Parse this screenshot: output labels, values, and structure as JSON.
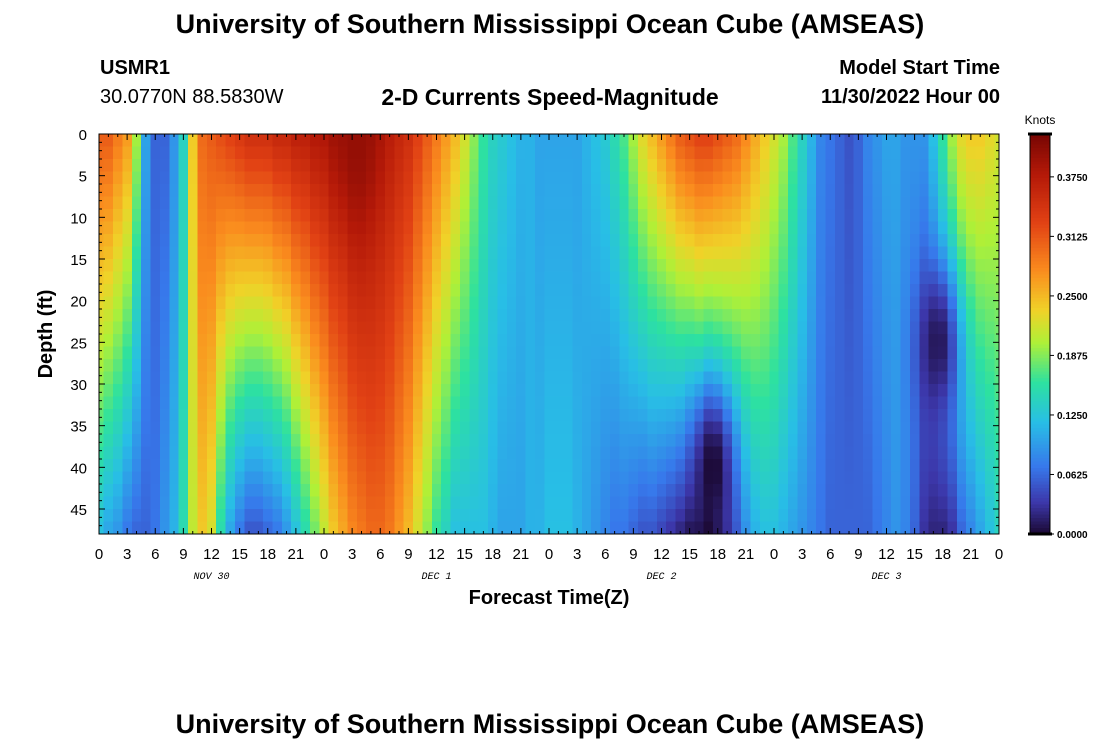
{
  "header": {
    "title": "University of Southern Mississippi Ocean Cube (AMSEAS)",
    "station_id": "USMR1",
    "station_coords": "30.0770N  88.5830W",
    "chart_title": "2-D Currents Speed-Magnitude",
    "model_start_label": "Model Start Time",
    "model_start_value": "11/30/2022 Hour 00"
  },
  "footer": {
    "title": "University of Southern Mississippi Ocean Cube (AMSEAS)"
  },
  "chart_data": {
    "type": "heatmap",
    "title": "2-D Currents Speed-Magnitude",
    "xlabel": "Forecast Time(Z)",
    "ylabel": "Depth (ft)",
    "x_range_hours": [
      0,
      96
    ],
    "x_tick_step_hours": 3,
    "x_tick_labels": [
      "0",
      "3",
      "6",
      "9",
      "12",
      "15",
      "18",
      "21",
      "0",
      "3",
      "6",
      "9",
      "12",
      "15",
      "18",
      "21",
      "0",
      "3",
      "6",
      "9",
      "12",
      "15",
      "18",
      "21",
      "0",
      "3",
      "6",
      "9",
      "12",
      "15",
      "18",
      "21",
      "0"
    ],
    "x_day_labels": [
      {
        "label": "NOV 30",
        "hour": 12
      },
      {
        "label": "DEC 1",
        "hour": 36
      },
      {
        "label": "DEC 2",
        "hour": 60
      },
      {
        "label": "DEC 3",
        "hour": 84
      }
    ],
    "y_range_ft": [
      0,
      48
    ],
    "y_ticks": [
      0,
      5,
      10,
      15,
      20,
      25,
      30,
      35,
      40,
      45
    ],
    "y_tick_labels": [
      "0",
      "5",
      "10",
      "15",
      "20",
      "25",
      "30",
      "35",
      "40",
      "45"
    ],
    "colorbar": {
      "label": "Knots",
      "range": [
        0,
        0.42
      ],
      "ticks": [
        0,
        0.0625,
        0.125,
        0.1875,
        0.25,
        0.3125,
        0.375
      ],
      "tick_labels": [
        "0.0000",
        "0.0625",
        "0.1250",
        "0.1875",
        "0.2500",
        "0.3125",
        "0.3750"
      ]
    },
    "features": [
      {
        "description": "strong surface current maximum",
        "hour": 27.5,
        "depth_ft": 0,
        "speed_knots": 0.4
      },
      {
        "description": "near-zero minimum",
        "hour": 65.5,
        "depth_ft": 40,
        "speed_knots": 0.0
      },
      {
        "description": "near-zero minimum",
        "hour": 89.5,
        "depth_ft": 25,
        "speed_knots": 0.01
      }
    ],
    "speed_profiles_knots": {
      "hours": [
        0,
        1,
        2,
        3,
        4,
        5,
        6,
        7,
        8,
        9,
        10,
        11,
        12,
        13,
        14,
        15,
        16,
        17,
        18,
        19,
        20,
        21,
        22,
        23,
        24,
        25,
        26,
        27,
        28,
        29,
        30,
        31,
        32,
        33,
        34,
        35,
        36,
        37,
        38,
        39,
        40,
        41,
        42,
        43,
        44,
        45,
        46,
        47,
        48,
        49,
        50,
        51,
        52,
        53,
        54,
        55,
        56,
        57,
        58,
        59,
        60,
        61,
        62,
        63,
        64,
        65,
        66,
        67,
        68,
        69,
        70,
        71,
        72,
        73,
        74,
        75,
        76,
        77,
        78,
        79,
        80,
        81,
        82,
        83,
        84,
        85,
        86,
        87,
        88,
        89,
        90,
        91,
        92,
        93,
        94,
        95,
        96
      ],
      "surface_0ft": [
        0.31,
        0.31,
        0.29,
        0.27,
        0.2,
        0.1,
        0.06,
        0.06,
        0.09,
        0.14,
        0.24,
        0.3,
        0.31,
        0.32,
        0.33,
        0.34,
        0.35,
        0.35,
        0.35,
        0.36,
        0.36,
        0.37,
        0.37,
        0.38,
        0.38,
        0.39,
        0.39,
        0.4,
        0.4,
        0.39,
        0.38,
        0.37,
        0.36,
        0.35,
        0.33,
        0.31,
        0.29,
        0.27,
        0.25,
        0.22,
        0.19,
        0.16,
        0.14,
        0.13,
        0.12,
        0.11,
        0.11,
        0.1,
        0.1,
        0.1,
        0.1,
        0.1,
        0.11,
        0.12,
        0.13,
        0.15,
        0.17,
        0.2,
        0.23,
        0.25,
        0.27,
        0.29,
        0.31,
        0.32,
        0.33,
        0.33,
        0.32,
        0.31,
        0.3,
        0.28,
        0.26,
        0.24,
        0.22,
        0.2,
        0.17,
        0.14,
        0.11,
        0.08,
        0.07,
        0.06,
        0.05,
        0.06,
        0.08,
        0.09,
        0.1,
        0.1,
        0.09,
        0.09,
        0.09,
        0.12,
        0.16,
        0.2,
        0.23,
        0.24,
        0.24,
        0.23,
        0.22
      ],
      "bottom_45ft": [
        0.12,
        0.1,
        0.09,
        0.07,
        0.06,
        0.06,
        0.07,
        0.09,
        0.11,
        0.15,
        0.21,
        0.24,
        0.22,
        0.15,
        0.1,
        0.07,
        0.05,
        0.05,
        0.06,
        0.07,
        0.09,
        0.12,
        0.15,
        0.18,
        0.21,
        0.24,
        0.26,
        0.28,
        0.29,
        0.3,
        0.3,
        0.29,
        0.27,
        0.25,
        0.22,
        0.19,
        0.16,
        0.14,
        0.12,
        0.12,
        0.12,
        0.12,
        0.11,
        0.1,
        0.1,
        0.1,
        0.11,
        0.11,
        0.12,
        0.12,
        0.12,
        0.11,
        0.1,
        0.09,
        0.08,
        0.07,
        0.07,
        0.06,
        0.05,
        0.05,
        0.04,
        0.03,
        0.02,
        0.01,
        0.01,
        0.0,
        0.02,
        0.04,
        0.06,
        0.09,
        0.11,
        0.12,
        0.12,
        0.11,
        0.1,
        0.09,
        0.08,
        0.07,
        0.06,
        0.06,
        0.06,
        0.06,
        0.06,
        0.07,
        0.08,
        0.09,
        0.08,
        0.06,
        0.03,
        0.02,
        0.02,
        0.03,
        0.06,
        0.08,
        0.1,
        0.12,
        0.14
      ]
    }
  }
}
